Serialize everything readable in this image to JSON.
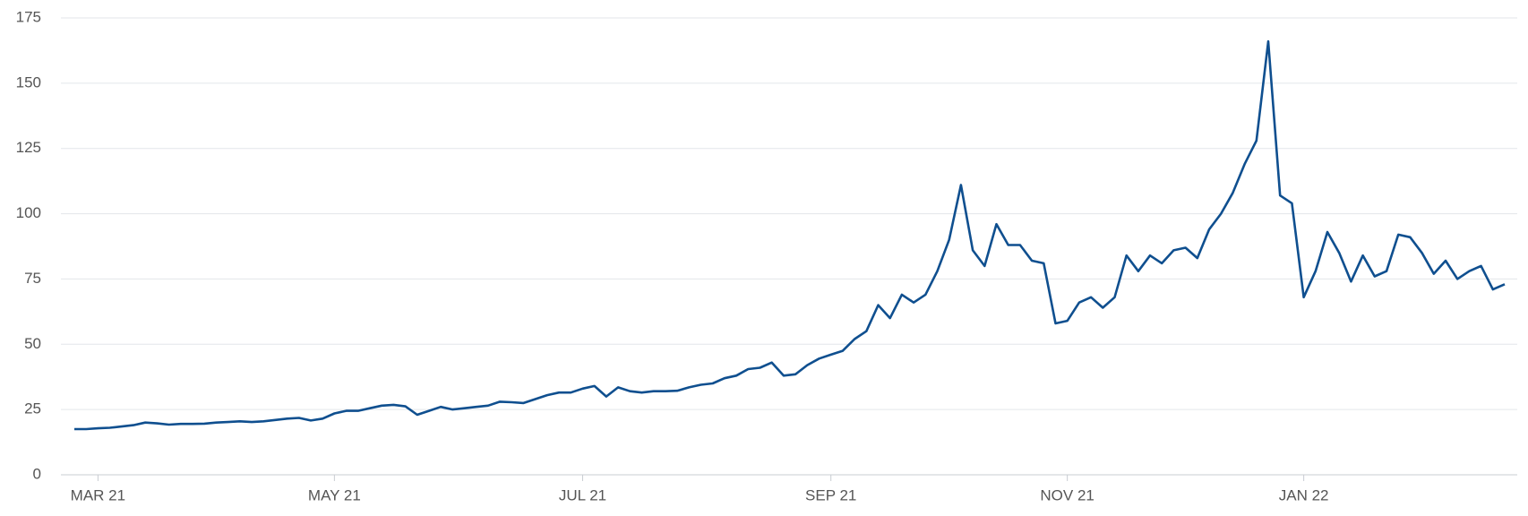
{
  "chart_data": {
    "type": "line",
    "categories": [
      null,
      null,
      "MAR 21",
      null,
      null,
      null,
      null,
      null,
      null,
      null,
      null,
      null,
      null,
      null,
      null,
      null,
      null,
      null,
      null,
      null,
      null,
      null,
      "MAY 21",
      null,
      null,
      null,
      null,
      null,
      null,
      null,
      null,
      null,
      null,
      null,
      null,
      null,
      null,
      null,
      null,
      null,
      null,
      null,
      null,
      "JUL 21",
      null,
      null,
      null,
      null,
      null,
      null,
      null,
      null,
      null,
      null,
      null,
      null,
      null,
      null,
      null,
      null,
      null,
      null,
      null,
      null,
      "SEP 21",
      null,
      null,
      null,
      null,
      null,
      null,
      null,
      null,
      null,
      null,
      null,
      null,
      null,
      null,
      null,
      null,
      null,
      null,
      null,
      "NOV 21",
      null,
      null,
      null,
      null,
      null,
      null,
      null,
      null,
      null,
      null,
      null,
      null,
      null,
      null,
      null,
      null,
      null,
      null,
      null,
      "JAN 22",
      null,
      null,
      null,
      null,
      null,
      null,
      null,
      null,
      null,
      null,
      null,
      null,
      null,
      null,
      null,
      null,
      null
    ],
    "values": [
      17.5,
      17.5,
      17.8,
      18,
      18.5,
      19,
      20,
      19.7,
      19.2,
      19.5,
      19.5,
      19.6,
      20,
      20.2,
      20.5,
      20.2,
      20.5,
      21,
      21.5,
      21.8,
      20.8,
      21.5,
      23.5,
      24.5,
      24.5,
      25.5,
      26.5,
      26.8,
      26.2,
      23,
      24.5,
      26,
      25,
      25.5,
      26,
      26.5,
      28,
      27.8,
      27.5,
      29,
      30.5,
      31.5,
      31.5,
      33,
      34,
      30,
      33.5,
      32,
      31.5,
      32,
      32,
      32.2,
      33.5,
      34.5,
      35,
      37,
      38,
      40.5,
      41,
      43,
      38,
      38.5,
      42,
      44.5,
      46,
      47.5,
      52,
      55,
      65,
      60,
      69,
      66,
      69,
      78,
      90,
      111,
      86,
      80,
      96,
      88,
      88,
      82,
      81,
      58,
      59,
      66,
      68,
      64,
      68,
      84,
      78,
      84,
      81,
      86,
      87,
      83,
      94,
      100,
      108,
      119,
      128,
      166,
      107,
      104,
      68,
      78,
      93,
      85,
      74,
      84,
      76,
      78,
      92,
      91,
      85,
      77,
      82,
      75,
      78,
      80,
      71,
      73
    ],
    "color": "#0f4f8f",
    "ylim": [
      0,
      175
    ],
    "yticks": [
      0,
      25,
      50,
      75,
      100,
      125,
      150,
      175
    ],
    "grid": true
  }
}
